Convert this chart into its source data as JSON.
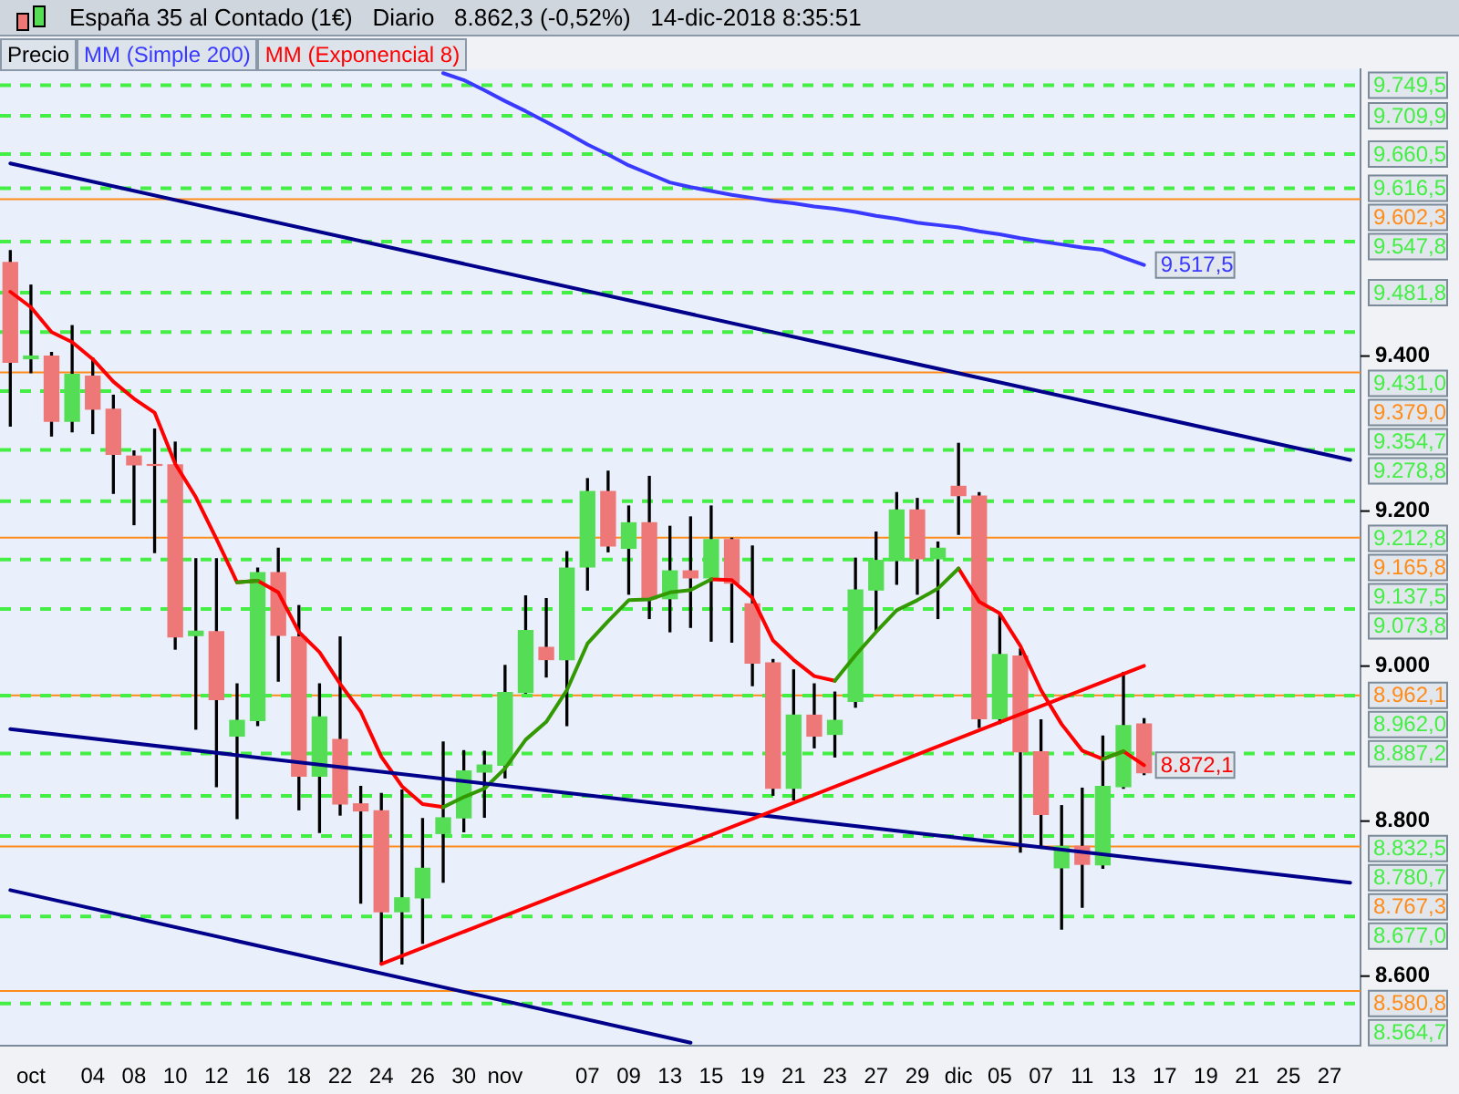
{
  "chart_data": {
    "type": "candlestick",
    "title": "España 35 al Contado (1€)   Diario   8.862,3 (-0,52%)   14-dic-2018 8:35:51",
    "categories": [
      null,
      "oct",
      null,
      null,
      "04",
      null,
      "08",
      null,
      "10",
      null,
      "12",
      null,
      "16",
      null,
      "18",
      null,
      "22",
      null,
      "24",
      null,
      "26",
      null,
      "30",
      null,
      "nov",
      null,
      null,
      null,
      "07",
      null,
      "09",
      null,
      "13",
      null,
      "15",
      null,
      "19",
      null,
      "21",
      null,
      "23",
      null,
      "27",
      null,
      "29",
      null,
      "dic",
      null,
      "05",
      null,
      "07",
      null,
      "11",
      null,
      "13",
      null,
      "17",
      null,
      "19",
      null,
      "21",
      null,
      "25",
      null,
      "27",
      null
    ],
    "ylim": [
      8510,
      9770
    ],
    "yticks": [
      {
        "value": 8600,
        "label": "8.600"
      },
      {
        "value": 8800,
        "label": "8.800"
      },
      {
        "value": 9000,
        "label": "9.000"
      },
      {
        "value": 9200,
        "label": "9.200"
      },
      {
        "value": 9400,
        "label": "9.400"
      }
    ],
    "legend": "top left",
    "series": [
      {
        "name": "Precio",
        "type": "candlestick",
        "ohlc": [
          [
            9520.6,
            9536,
            9309.7,
            9392
          ],
          [
            9396.6,
            9491.5,
            9378.6,
            9400
          ],
          [
            9400,
            9404.6,
            9296.9,
            9315.8
          ],
          [
            9315.8,
            9439.2,
            9302.3,
            9376.4
          ],
          [
            9374.1,
            9397.2,
            9300.1,
            9331.5
          ],
          [
            9331.5,
            9349.4,
            9222.9,
            9273.2
          ],
          [
            9270.9,
            9277.6,
            9182.5,
            9259.7
          ],
          [
            9260,
            9305.9,
            9146.6,
            9259
          ],
          [
            9259.7,
            9288.9,
            9021.9,
            9037.6
          ],
          [
            9039.4,
            9138.5,
            8918.7,
            9045
          ],
          [
            9044.3,
            9138.5,
            8844.6,
            8956.8
          ],
          [
            8909.7,
            8977,
            8803.3,
            8929.9
          ],
          [
            8929.9,
            9126.4,
            8923.2,
            9120.6
          ],
          [
            9120.6,
            9152,
            8980.6,
            9039.8
          ],
          [
            9037.6,
            9078,
            8814.6,
            8858.1
          ],
          [
            8858.1,
            8977,
            8785.4,
            8934.4
          ],
          [
            8905.2,
            9037.6,
            8807.8,
            8822.2
          ],
          [
            8822.2,
            8844.6,
            8694.3,
            8813.2
          ],
          [
            8813.2,
            8835.6,
            8615.8,
            8683.1
          ],
          [
            8683.1,
            8840,
            8615.8,
            8701
          ],
          [
            8701,
            8803.3,
            8642.6,
            8739.1
          ],
          [
            8784,
            8902,
            8721.2,
            8804.2
          ],
          [
            8804.2,
            8890.8,
            8786.3,
            8864.8
          ],
          [
            8863.3,
            8890,
            8805,
            8872.3
          ],
          [
            8872.2,
            9000.8,
            8855.8,
            8965.8
          ],
          [
            8965.8,
            9090.5,
            8965,
            9045.7
          ],
          [
            9024.1,
            9087,
            8986,
            9008.4
          ],
          [
            9008.4,
            9147.5,
            8923.2,
            9126.4
          ],
          [
            9128,
            9241.8,
            9098.2,
            9225.1
          ],
          [
            9225.1,
            9251.4,
            9147.5,
            9154.9
          ],
          [
            9152,
            9206.5,
            9092.8,
            9184.8
          ],
          [
            9184.8,
            9244.7,
            9061.4,
            9087
          ],
          [
            9087,
            9180.3,
            9044.3,
            9122.8
          ],
          [
            9122.8,
            9192.4,
            9050,
            9113.9
          ],
          [
            9113.9,
            9206.5,
            9032.2,
            9163.2
          ],
          [
            9163.2,
            9165,
            9030.9,
            9107.1
          ],
          [
            9080.2,
            9154.9,
            8974.8,
            9004
          ],
          [
            9004,
            9008.4,
            8833.4,
            8842.4
          ],
          [
            8842.4,
            8995,
            8827.3,
            8936.6
          ],
          [
            8936.6,
            8977,
            8894.6,
            8909.7
          ],
          [
            8911.9,
            8966.4,
            8882.8,
            8929.9
          ],
          [
            8954.5,
            9139.2,
            8947,
            9098.2
          ],
          [
            9098.2,
            9172.9,
            9045.7,
            9136.3
          ],
          [
            9136.3,
            9223.8,
            9105.6,
            9201.4
          ],
          [
            9201.4,
            9216.2,
            9092.8,
            9138.5
          ],
          [
            9138.5,
            9160,
            9061.4,
            9152
          ],
          [
            9231.9,
            9287.3,
            9170,
            9220
          ],
          [
            9219.3,
            9223.8,
            8920.9,
            8932.1
          ],
          [
            8932.1,
            9066.8,
            8926,
            9015.1
          ],
          [
            9012.9,
            9022,
            8760,
            8889.5
          ],
          [
            8889.5,
            8930.5,
            8767.4,
            8808.7
          ],
          [
            8739.8,
            8819.9,
            8660.6,
            8767.4
          ],
          [
            8767.4,
            8842.4,
            8688.9,
            8744.3
          ],
          [
            8743.6,
            8909.7,
            8739.2,
            8844.6
          ],
          [
            8844.6,
            8991.8,
            8842.4,
            8923.2
          ],
          [
            8925.4,
            8932.1,
            8860,
            8862.3
          ],
          null,
          null,
          null,
          null,
          null,
          null,
          null,
          null,
          null,
          null
        ],
        "colors": [
          "#ee7777",
          "#55dd55",
          "#ee7777",
          "#55dd55",
          "#ee7777",
          "#ee7777",
          "#ee7777",
          "#ee7777",
          "#ee7777",
          "#55dd55",
          "#ee7777",
          "#55dd55",
          "#55dd55",
          "#ee7777",
          "#ee7777",
          "#55dd55",
          "#ee7777",
          "#ee7777",
          "#ee7777",
          "#55dd55",
          "#55dd55",
          "#55dd55",
          "#55dd55",
          "#55dd55",
          "#55dd55",
          "#55dd55",
          "#ee7777",
          "#55dd55",
          "#55dd55",
          "#ee7777",
          "#55dd55",
          "#ee7777",
          "#55dd55",
          "#ee7777",
          "#55dd55",
          "#ee7777",
          "#ee7777",
          "#ee7777",
          "#55dd55",
          "#ee7777",
          "#55dd55",
          "#55dd55",
          "#55dd55",
          "#55dd55",
          "#ee7777",
          "#55dd55",
          "#ee7777",
          "#ee7777",
          "#55dd55",
          "#ee7777",
          "#ee7777",
          "#55dd55",
          "#ee7777",
          "#55dd55",
          "#55dd55",
          "#ee7777",
          null,
          null,
          null,
          null,
          null,
          null,
          null,
          null,
          null,
          null
        ]
      },
      {
        "name": "MM (Simple 200)",
        "type": "line",
        "color": "#3a3aff",
        "values": [
          null,
          null,
          null,
          null,
          null,
          null,
          null,
          null,
          null,
          null,
          null,
          null,
          null,
          null,
          null,
          null,
          null,
          null,
          null,
          null,
          null,
          9765,
          9756,
          9743,
          9729,
          9716,
          9702,
          9688,
          9673,
          9660,
          9646,
          9635,
          9624,
          9618,
          9613,
          9608,
          9604,
          9600,
          9597,
          9593,
          9590,
          9586,
          9581,
          9577,
          9572,
          9569,
          9566,
          9561,
          9557,
          9552,
          9548,
          9544,
          9540,
          9537,
          9527,
          9517.5,
          null,
          null,
          null,
          null,
          null,
          null,
          null,
          null,
          null,
          null
        ],
        "value_labels": [
          null,
          null,
          null,
          null,
          null,
          null,
          null,
          null,
          null,
          null,
          null,
          null,
          null,
          null,
          null,
          null,
          null,
          null,
          null,
          null,
          null,
          null,
          null,
          null,
          null,
          null,
          null,
          null,
          null,
          null,
          null,
          null,
          null,
          null,
          null,
          null,
          null,
          null,
          null,
          null,
          null,
          null,
          null,
          null,
          null,
          null,
          null,
          null,
          null,
          null,
          null,
          null,
          null,
          null,
          null,
          "9.517,5",
          null,
          null,
          null,
          null,
          null,
          null,
          null,
          null,
          null,
          null
        ]
      },
      {
        "name": "MM (Exponencial 8)",
        "type": "line",
        "color": "#ff0000",
        "values": [
          9483,
          9463,
          9431,
          9418,
          9396,
          9367,
          9345,
          9327,
          9261,
          9218,
          9164,
          9108,
          9110,
          9095,
          9044,
          9018,
          8977,
          8941,
          8883,
          8845,
          8822,
          8818,
          null,
          null,
          null,
          null,
          null,
          null,
          null,
          null,
          null,
          null,
          null,
          null,
          9112,
          9111,
          9088,
          9033,
          9008,
          8987,
          8981,
          null,
          null,
          null,
          null,
          null,
          9126,
          9083,
          9068,
          9026,
          8969,
          8925,
          8891,
          8880,
          8890,
          8872.1,
          null,
          null,
          null,
          null,
          null,
          null,
          null,
          null,
          null,
          null
        ],
        "value_labels": [
          null,
          null,
          null,
          null,
          null,
          null,
          null,
          null,
          null,
          null,
          null,
          null,
          null,
          null,
          null,
          null,
          null,
          null,
          null,
          null,
          null,
          null,
          null,
          null,
          null,
          null,
          null,
          null,
          null,
          null,
          null,
          null,
          null,
          null,
          null,
          null,
          null,
          null,
          null,
          null,
          null,
          null,
          null,
          null,
          null,
          null,
          null,
          null,
          null,
          null,
          null,
          null,
          null,
          null,
          null,
          "8.872,1",
          null,
          null,
          null,
          null,
          null,
          null,
          null,
          null,
          null,
          null
        ]
      },
      {
        "type": "line",
        "color": "#339900",
        "values": [
          null,
          null,
          null,
          null,
          null,
          null,
          null,
          null,
          null,
          null,
          null,
          9108,
          9110,
          null,
          null,
          null,
          null,
          null,
          null,
          null,
          null,
          8818,
          8831,
          8842,
          8868,
          8905,
          8928,
          8969,
          9029,
          9058,
          9085,
          9086,
          9095,
          9098,
          9112,
          null,
          null,
          null,
          null,
          null,
          8981,
          9014,
          9044,
          9072,
          9085,
          9100,
          9126,
          null,
          null,
          null,
          null,
          null,
          null,
          8880,
          8890,
          null,
          null,
          null,
          null,
          null,
          null,
          null,
          null,
          null,
          null,
          null
        ]
      },
      {
        "type": "line",
        "color": "#00008b",
        "values": [
          9648.5,
          null,
          null,
          null,
          null,
          null,
          null,
          null,
          null,
          null,
          null,
          null,
          null,
          null,
          null,
          null,
          null,
          null,
          null,
          null,
          null,
          null,
          null,
          null,
          null,
          null,
          null,
          null,
          null,
          null,
          null,
          null,
          null,
          null,
          null,
          null,
          null,
          null,
          null,
          null,
          null,
          null,
          null,
          null,
          null,
          null,
          null,
          null,
          null,
          null,
          null,
          null,
          null,
          null,
          null,
          null,
          null,
          null,
          null,
          null,
          null,
          null,
          null,
          null,
          null,
          9266
        ]
      },
      {
        "type": "line",
        "color": "#00008b",
        "values": [
          8918.6,
          null,
          null,
          null,
          null,
          null,
          null,
          null,
          null,
          null,
          null,
          null,
          null,
          null,
          null,
          null,
          null,
          null,
          null,
          null,
          null,
          null,
          null,
          null,
          null,
          null,
          null,
          null,
          null,
          null,
          null,
          null,
          null,
          null,
          null,
          null,
          null,
          null,
          null,
          null,
          null,
          null,
          null,
          null,
          null,
          null,
          null,
          null,
          null,
          null,
          null,
          null,
          null,
          null,
          null,
          null,
          null,
          null,
          null,
          null,
          null,
          null,
          null,
          null,
          null,
          8720.5
        ]
      },
      {
        "type": "line",
        "color": "#00008b",
        "values": [
          8710.9,
          null,
          null,
          null,
          null,
          null,
          null,
          null,
          null,
          null,
          null,
          null,
          null,
          null,
          null,
          null,
          null,
          null,
          null,
          null,
          null,
          null,
          null,
          null,
          null,
          null,
          null,
          null,
          null,
          null,
          null,
          null,
          null,
          8514.1,
          null,
          null,
          null,
          null,
          null,
          null,
          null,
          null,
          null,
          null,
          null,
          null,
          null,
          null,
          null,
          null,
          null,
          null,
          null,
          null,
          null,
          null,
          null,
          null,
          null,
          null,
          null,
          null,
          null,
          null,
          null,
          null
        ]
      },
      {
        "type": "line",
        "color": "#ff0000",
        "values": [
          null,
          null,
          null,
          null,
          null,
          null,
          null,
          null,
          null,
          null,
          null,
          null,
          null,
          null,
          null,
          null,
          null,
          null,
          8615.7,
          null,
          null,
          null,
          null,
          null,
          null,
          null,
          null,
          null,
          null,
          null,
          null,
          null,
          null,
          null,
          null,
          null,
          null,
          null,
          null,
          null,
          null,
          null,
          null,
          null,
          null,
          null,
          null,
          null,
          null,
          null,
          null,
          null,
          null,
          null,
          null,
          9000.3,
          null,
          null,
          null,
          null,
          null,
          null,
          null,
          null,
          null,
          null
        ]
      }
    ],
    "ref_lines": [
      {
        "axis": "y",
        "value": 9749.5,
        "label": "9.749,5",
        "color": "#44ee44",
        "line_style": "dashed"
      },
      {
        "axis": "y",
        "value": 9709.9,
        "label": "9.709,9",
        "color": "#44ee44",
        "line_style": "dashed"
      },
      {
        "axis": "y",
        "value": 9660.5,
        "label": "9.660,5",
        "color": "#44ee44",
        "line_style": "dashed"
      },
      {
        "axis": "y",
        "value": 9616.5,
        "label": "9.616,5",
        "color": "#44ee44",
        "line_style": "dashed"
      },
      {
        "axis": "y",
        "value": 9602.3,
        "label": "9.602,3",
        "color": "#ff8c1a",
        "line_style": "solid"
      },
      {
        "axis": "y",
        "value": 9547.8,
        "label": "9.547,8",
        "color": "#44ee44",
        "line_style": "dashed"
      },
      {
        "axis": "y",
        "value": 9481.8,
        "label": "9.481,8",
        "color": "#44ee44",
        "line_style": "dashed"
      },
      {
        "axis": "y",
        "value": 9431.0,
        "label": "9.431,0",
        "color": "#44ee44",
        "line_style": "dashed"
      },
      {
        "axis": "y",
        "value": 9379.0,
        "label": "9.379,0",
        "color": "#ff8c1a",
        "line_style": "solid"
      },
      {
        "axis": "y",
        "value": 9354.7,
        "label": "9.354,7",
        "color": "#44ee44",
        "line_style": "dashed"
      },
      {
        "axis": "y",
        "value": 9278.8,
        "label": "9.278,8",
        "color": "#44ee44",
        "line_style": "dashed"
      },
      {
        "axis": "y",
        "value": 9212.8,
        "label": "9.212,8",
        "color": "#44ee44",
        "line_style": "dashed"
      },
      {
        "axis": "y",
        "value": 9165.8,
        "label": "9.165,8",
        "color": "#ff8c1a",
        "line_style": "solid"
      },
      {
        "axis": "y",
        "value": 9137.5,
        "label": "9.137,5",
        "color": "#44ee44",
        "line_style": "dashed"
      },
      {
        "axis": "y",
        "value": 9073.8,
        "label": "9.073,8",
        "color": "#44ee44",
        "line_style": "dashed"
      },
      {
        "axis": "y",
        "value": 8962.1,
        "label": "8.962,1",
        "color": "#ff8c1a",
        "line_style": "solid"
      },
      {
        "axis": "y",
        "value": 8962.0,
        "label": "8.962,0",
        "color": "#44ee44",
        "line_style": "dashed"
      },
      {
        "axis": "y",
        "value": 8887.2,
        "label": "8.887,2",
        "color": "#44ee44",
        "line_style": "dashed"
      },
      {
        "axis": "y",
        "value": 8832.5,
        "label": "8.832,5",
        "color": "#44ee44",
        "line_style": "dashed"
      },
      {
        "axis": "y",
        "value": 8780.7,
        "label": "8.780,7",
        "color": "#44ee44",
        "line_style": "dashed"
      },
      {
        "axis": "y",
        "value": 8767.3,
        "label": "8.767,3",
        "color": "#ff8c1a",
        "line_style": "solid"
      },
      {
        "axis": "y",
        "value": 8677.0,
        "label": "8.677,0",
        "color": "#44ee44",
        "line_style": "dashed"
      },
      {
        "axis": "y",
        "value": 8580.8,
        "label": "8.580,8",
        "color": "#ff8c1a",
        "line_style": "solid"
      },
      {
        "axis": "y",
        "value": 8564.7,
        "label": "8.564,7",
        "color": "#44ee44",
        "line_style": "dashed"
      }
    ]
  }
}
